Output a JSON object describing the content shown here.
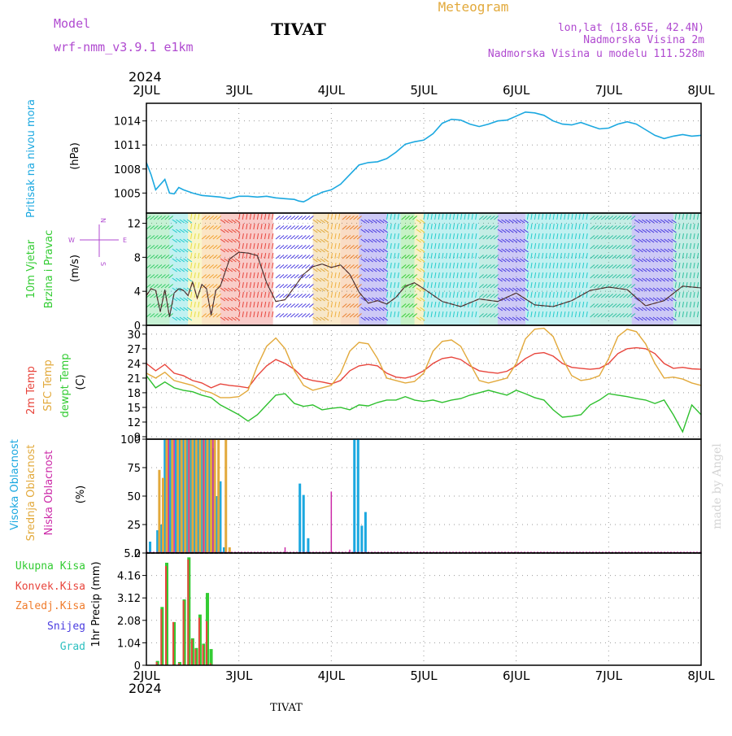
{
  "header": {
    "model_label": "Model",
    "model_name": "wrf-nmm_v3.9.1 e1km",
    "location_title": "TIVAT",
    "meteogram_label": "Meteogram",
    "coords": "lon,lat (18.65E, 42.4N)",
    "elevation": "Nadmorska Visina 2m",
    "model_elevation": "Nadmorska Visina u modelu 111.528m",
    "footer_location": "TIVAT",
    "watermark": "made by Angel"
  },
  "time_axis": {
    "year_top": "2024",
    "year_bottom": "2024",
    "ticks": [
      "2JUL",
      "3JUL",
      "4JUL",
      "5JUL",
      "6JUL",
      "7JUL",
      "8JUL"
    ]
  },
  "colors": {
    "pressure": "#1ba8e0",
    "temp2m": "#e8453c",
    "sfc_temp": "#e2a93b",
    "dewpoint": "#2ec02e",
    "high_cloud": "#1ba8e0",
    "mid_cloud": "#e2a93b",
    "low_cloud": "#cc2aa8",
    "total_precip": "#33cc33",
    "conv_precip": "#e8453c",
    "frozen_precip": "#f07c2c",
    "snow": "#4a3ce0",
    "hail": "#2ec0c0",
    "model_purple": "#b04ad0"
  },
  "chart_data": [
    {
      "id": "pressure",
      "type": "line",
      "ylabel_colored": "Pritisak na nivou mora",
      "unit": "(hPa)",
      "yticks": [
        "1005",
        "1008",
        "1011",
        "1014"
      ],
      "ylim": [
        1002.5,
        1016.2
      ],
      "x": [
        0,
        0.05,
        0.1,
        0.2,
        0.25,
        0.3,
        0.35,
        0.4,
        0.5,
        0.6,
        0.7,
        0.8,
        0.9,
        1.0,
        1.1,
        1.2,
        1.3,
        1.4,
        1.5,
        1.6,
        1.65,
        1.7,
        1.75,
        1.8,
        1.85,
        1.9,
        2.0,
        2.1,
        2.2,
        2.3,
        2.4,
        2.5,
        2.6,
        2.7,
        2.8,
        2.9,
        3.0,
        3.1,
        3.2,
        3.3,
        3.4,
        3.5,
        3.6,
        3.7,
        3.8,
        3.9,
        4.0,
        4.1,
        4.2,
        4.3,
        4.4,
        4.5,
        4.6,
        4.7,
        4.8,
        4.9,
        5.0,
        5.1,
        5.2,
        5.3,
        5.4,
        5.5,
        5.6,
        5.7,
        5.8,
        5.9,
        6.0
      ],
      "values": [
        1008.8,
        1007.3,
        1005.4,
        1006.7,
        1005.0,
        1004.9,
        1005.7,
        1005.4,
        1005.0,
        1004.7,
        1004.6,
        1004.5,
        1004.3,
        1004.6,
        1004.6,
        1004.5,
        1004.6,
        1004.4,
        1004.3,
        1004.2,
        1004.0,
        1003.9,
        1004.2,
        1004.6,
        1004.8,
        1005.1,
        1005.4,
        1006.1,
        1007.3,
        1008.5,
        1008.8,
        1008.9,
        1009.3,
        1010.1,
        1011.1,
        1011.4,
        1011.6,
        1012.4,
        1013.7,
        1014.2,
        1014.1,
        1013.6,
        1013.3,
        1013.6,
        1014.0,
        1014.1,
        1014.6,
        1015.1,
        1015.0,
        1014.7,
        1014.0,
        1013.6,
        1013.5,
        1013.8,
        1013.4,
        1013.0,
        1013.1,
        1013.6,
        1013.9,
        1013.6,
        1012.9,
        1012.2,
        1011.8,
        1012.1,
        1012.3,
        1012.1,
        1012.2
      ]
    },
    {
      "id": "wind",
      "type": "line",
      "ylabel_colored_1": "10m Vjetar",
      "ylabel_colored_2": "Brzina i Pravac",
      "unit": "(m/s)",
      "compass_top": "N",
      "compass_left": "W",
      "compass_right": "E",
      "compass_bottom": "S",
      "yticks": [
        "0",
        "4",
        "8",
        "12"
      ],
      "ylim": [
        0,
        13.2
      ],
      "x": [
        0,
        0.05,
        0.1,
        0.15,
        0.2,
        0.25,
        0.3,
        0.35,
        0.4,
        0.45,
        0.5,
        0.55,
        0.6,
        0.65,
        0.7,
        0.75,
        0.8,
        0.9,
        1.0,
        1.1,
        1.2,
        1.3,
        1.4,
        1.5,
        1.6,
        1.7,
        1.8,
        1.9,
        2.0,
        2.1,
        2.2,
        2.3,
        2.4,
        2.5,
        2.6,
        2.7,
        2.8,
        2.9,
        3.0,
        3.2,
        3.4,
        3.6,
        3.8,
        4.0,
        4.2,
        4.4,
        4.6,
        4.8,
        5.0,
        5.2,
        5.4,
        5.6,
        5.8,
        6.0
      ],
      "values": [
        3.5,
        4.3,
        4.1,
        1.6,
        4.2,
        1.0,
        3.8,
        4.3,
        4.1,
        3.5,
        5.1,
        3.2,
        4.8,
        4.3,
        1.2,
        4.1,
        4.6,
        7.8,
        8.6,
        8.5,
        8.2,
        5.0,
        2.8,
        3.0,
        4.5,
        6.0,
        6.9,
        7.2,
        6.8,
        7.1,
        6.0,
        3.9,
        2.6,
        2.9,
        2.5,
        3.3,
        4.6,
        5.0,
        4.3,
        2.8,
        2.2,
        3.1,
        2.8,
        3.8,
        2.4,
        2.2,
        2.9,
        4.1,
        4.5,
        4.2,
        2.3,
        2.9,
        4.6,
        4.4
      ]
    },
    {
      "id": "temperature",
      "type": "line",
      "ylabel_temp2m": "2m Temp",
      "ylabel_sfc": "SFC Temp",
      "ylabel_dew": "dewpt Temp",
      "unit": "(C)",
      "yticks": [
        "9",
        "12",
        "15",
        "18",
        "21",
        "24",
        "27",
        "30"
      ],
      "ylim": [
        8.5,
        31.8
      ],
      "series": [
        {
          "key": "temp2m",
          "x": [
            0,
            0.1,
            0.2,
            0.3,
            0.4,
            0.5,
            0.6,
            0.7,
            0.8,
            0.9,
            1.0,
            1.1,
            1.2,
            1.3,
            1.4,
            1.5,
            1.6,
            1.7,
            1.8,
            1.9,
            2.0,
            2.1,
            2.2,
            2.3,
            2.4,
            2.5,
            2.6,
            2.7,
            2.8,
            2.9,
            3.0,
            3.1,
            3.2,
            3.3,
            3.4,
            3.5,
            3.6,
            3.7,
            3.8,
            3.9,
            4.0,
            4.1,
            4.2,
            4.3,
            4.4,
            4.5,
            4.6,
            4.7,
            4.8,
            4.9,
            5.0,
            5.1,
            5.2,
            5.3,
            5.4,
            5.5,
            5.6,
            5.7,
            5.8,
            5.9,
            6.0
          ],
          "values": [
            24.0,
            22.5,
            23.8,
            22.0,
            21.5,
            20.5,
            20.0,
            19.0,
            19.8,
            19.5,
            19.3,
            19.0,
            21.5,
            23.5,
            24.8,
            24.0,
            22.8,
            21.0,
            20.5,
            20.2,
            19.8,
            20.5,
            22.5,
            23.5,
            23.8,
            23.5,
            22.0,
            21.2,
            21.0,
            21.5,
            22.5,
            24.0,
            25.0,
            25.3,
            24.8,
            23.5,
            22.5,
            22.2,
            22.0,
            22.4,
            23.5,
            25.0,
            26.0,
            26.2,
            25.5,
            24.0,
            23.2,
            23.0,
            22.8,
            23.0,
            24.0,
            26.0,
            27.0,
            27.2,
            27.0,
            26.0,
            24.0,
            23.0,
            23.2,
            22.9,
            22.8
          ]
        },
        {
          "key": "sfc_temp",
          "x": [
            0,
            0.1,
            0.2,
            0.3,
            0.4,
            0.5,
            0.6,
            0.7,
            0.8,
            0.9,
            1.0,
            1.1,
            1.2,
            1.3,
            1.4,
            1.5,
            1.6,
            1.7,
            1.8,
            1.9,
            2.0,
            2.1,
            2.2,
            2.3,
            2.4,
            2.5,
            2.6,
            2.7,
            2.8,
            2.9,
            3.0,
            3.1,
            3.2,
            3.3,
            3.4,
            3.5,
            3.6,
            3.7,
            3.8,
            3.9,
            4.0,
            4.1,
            4.2,
            4.3,
            4.4,
            4.5,
            4.6,
            4.7,
            4.8,
            4.9,
            5.0,
            5.1,
            5.2,
            5.3,
            5.4,
            5.5,
            5.6,
            5.7,
            5.8,
            5.9,
            6.0
          ],
          "values": [
            22.0,
            21.0,
            22.2,
            20.5,
            20.0,
            19.5,
            18.5,
            18.0,
            17.0,
            17.0,
            17.2,
            18.5,
            23.5,
            27.5,
            29.2,
            27.0,
            22.5,
            19.5,
            18.5,
            19.0,
            19.5,
            22.0,
            26.5,
            28.3,
            28.0,
            25.0,
            21.0,
            20.5,
            20.0,
            20.3,
            22.0,
            26.5,
            28.5,
            28.8,
            27.5,
            24.0,
            20.5,
            20.0,
            20.5,
            21.0,
            24.0,
            29.0,
            31.0,
            31.2,
            29.5,
            25.0,
            21.5,
            20.5,
            20.8,
            21.5,
            25.0,
            29.5,
            31.0,
            30.5,
            28.0,
            24.0,
            21.0,
            21.2,
            20.8,
            20.0,
            19.5
          ]
        },
        {
          "key": "dewpoint",
          "x": [
            0,
            0.1,
            0.2,
            0.3,
            0.4,
            0.5,
            0.6,
            0.7,
            0.8,
            0.9,
            1.0,
            1.1,
            1.2,
            1.3,
            1.4,
            1.5,
            1.6,
            1.7,
            1.8,
            1.9,
            2.0,
            2.1,
            2.2,
            2.3,
            2.4,
            2.5,
            2.6,
            2.7,
            2.8,
            2.9,
            3.0,
            3.1,
            3.2,
            3.3,
            3.4,
            3.5,
            3.6,
            3.7,
            3.8,
            3.9,
            4.0,
            4.1,
            4.2,
            4.3,
            4.4,
            4.5,
            4.6,
            4.7,
            4.8,
            4.9,
            5.0,
            5.1,
            5.2,
            5.3,
            5.4,
            5.5,
            5.6,
            5.7,
            5.8,
            5.9,
            6.0
          ],
          "values": [
            21.5,
            19.0,
            20.2,
            19.0,
            18.5,
            18.2,
            17.5,
            17.0,
            15.5,
            14.5,
            13.5,
            12.2,
            13.5,
            15.5,
            17.5,
            17.8,
            15.8,
            15.2,
            15.5,
            14.5,
            14.8,
            15.0,
            14.5,
            15.5,
            15.3,
            16.0,
            16.5,
            16.5,
            17.2,
            16.5,
            16.2,
            16.5,
            16.0,
            16.5,
            16.8,
            17.5,
            18.0,
            18.5,
            18.0,
            17.5,
            18.5,
            17.8,
            17.0,
            16.5,
            14.5,
            13.0,
            13.2,
            13.5,
            15.5,
            16.5,
            17.8,
            17.5,
            17.2,
            16.8,
            16.5,
            15.8,
            16.5,
            13.5,
            10.0,
            15.5,
            13.5
          ]
        }
      ]
    },
    {
      "id": "clouds",
      "type": "bar",
      "ylabel_high": "Visoka Oblacnost",
      "ylabel_mid": "Srednja Oblacnost",
      "ylabel_low": "Niska Oblacnost",
      "unit": "(%)",
      "yticks": [
        "0",
        "25",
        "50",
        "75",
        "100"
      ],
      "ylim": [
        0,
        100
      ],
      "series": [
        {
          "key": "high_cloud",
          "x": [
            0.04,
            0.12,
            0.16,
            0.2,
            0.26,
            0.32,
            0.36,
            0.4,
            0.44,
            0.48,
            0.52,
            0.56,
            0.6,
            0.64,
            0.68,
            0.72,
            0.76,
            0.8,
            0.84,
            1.66,
            1.7,
            1.75,
            2.25,
            2.29,
            2.33,
            2.37
          ],
          "values": [
            10,
            20,
            25,
            100,
            100,
            100,
            100,
            100,
            100,
            100,
            100,
            100,
            100,
            100,
            100,
            92,
            50,
            63,
            5,
            61,
            51,
            13,
            100,
            100,
            24,
            36
          ]
        },
        {
          "key": "mid_cloud",
          "x": [
            0.14,
            0.18,
            0.22,
            0.28,
            0.34,
            0.38,
            0.42,
            0.46,
            0.5,
            0.54,
            0.58,
            0.62,
            0.66,
            0.7,
            0.74,
            0.78,
            0.86,
            0.9
          ],
          "values": [
            73,
            66,
            100,
            100,
            100,
            100,
            100,
            100,
            100,
            100,
            100,
            100,
            100,
            100,
            100,
            100,
            100,
            5
          ]
        },
        {
          "key": "low_cloud",
          "x": [
            0.24,
            0.3,
            0.46,
            0.62,
            0.72,
            1.5,
            2.0,
            2.2
          ],
          "values": [
            100,
            100,
            100,
            100,
            100,
            5,
            54,
            3
          ]
        }
      ]
    },
    {
      "id": "precip",
      "type": "bar",
      "label_total": "Ukupna Kisa",
      "label_conv": "Konvek.Kisa",
      "label_frozen": "Zaledj.Kisa",
      "label_snow": "Snijeg",
      "label_hail": "Grad",
      "unit": "1hr Precip (mm)",
      "yticks": [
        "0",
        "1.04",
        "2.08",
        "3.12",
        "4.16",
        "5.2"
      ],
      "ylim": [
        0,
        5.2
      ],
      "x": [
        0.12,
        0.17,
        0.22,
        0.3,
        0.36,
        0.41,
        0.46,
        0.5,
        0.54,
        0.58,
        0.62,
        0.66,
        0.7
      ],
      "total": [
        0.2,
        2.7,
        4.75,
        2.0,
        0.15,
        3.05,
        5.0,
        1.25,
        0.8,
        2.35,
        1.0,
        3.35,
        0.75
      ],
      "conv": [
        0.15,
        2.6,
        4.6,
        2.0,
        0.1,
        3.0,
        4.9,
        1.2,
        0.75,
        2.2,
        0.95,
        2.05,
        0.1
      ]
    }
  ]
}
